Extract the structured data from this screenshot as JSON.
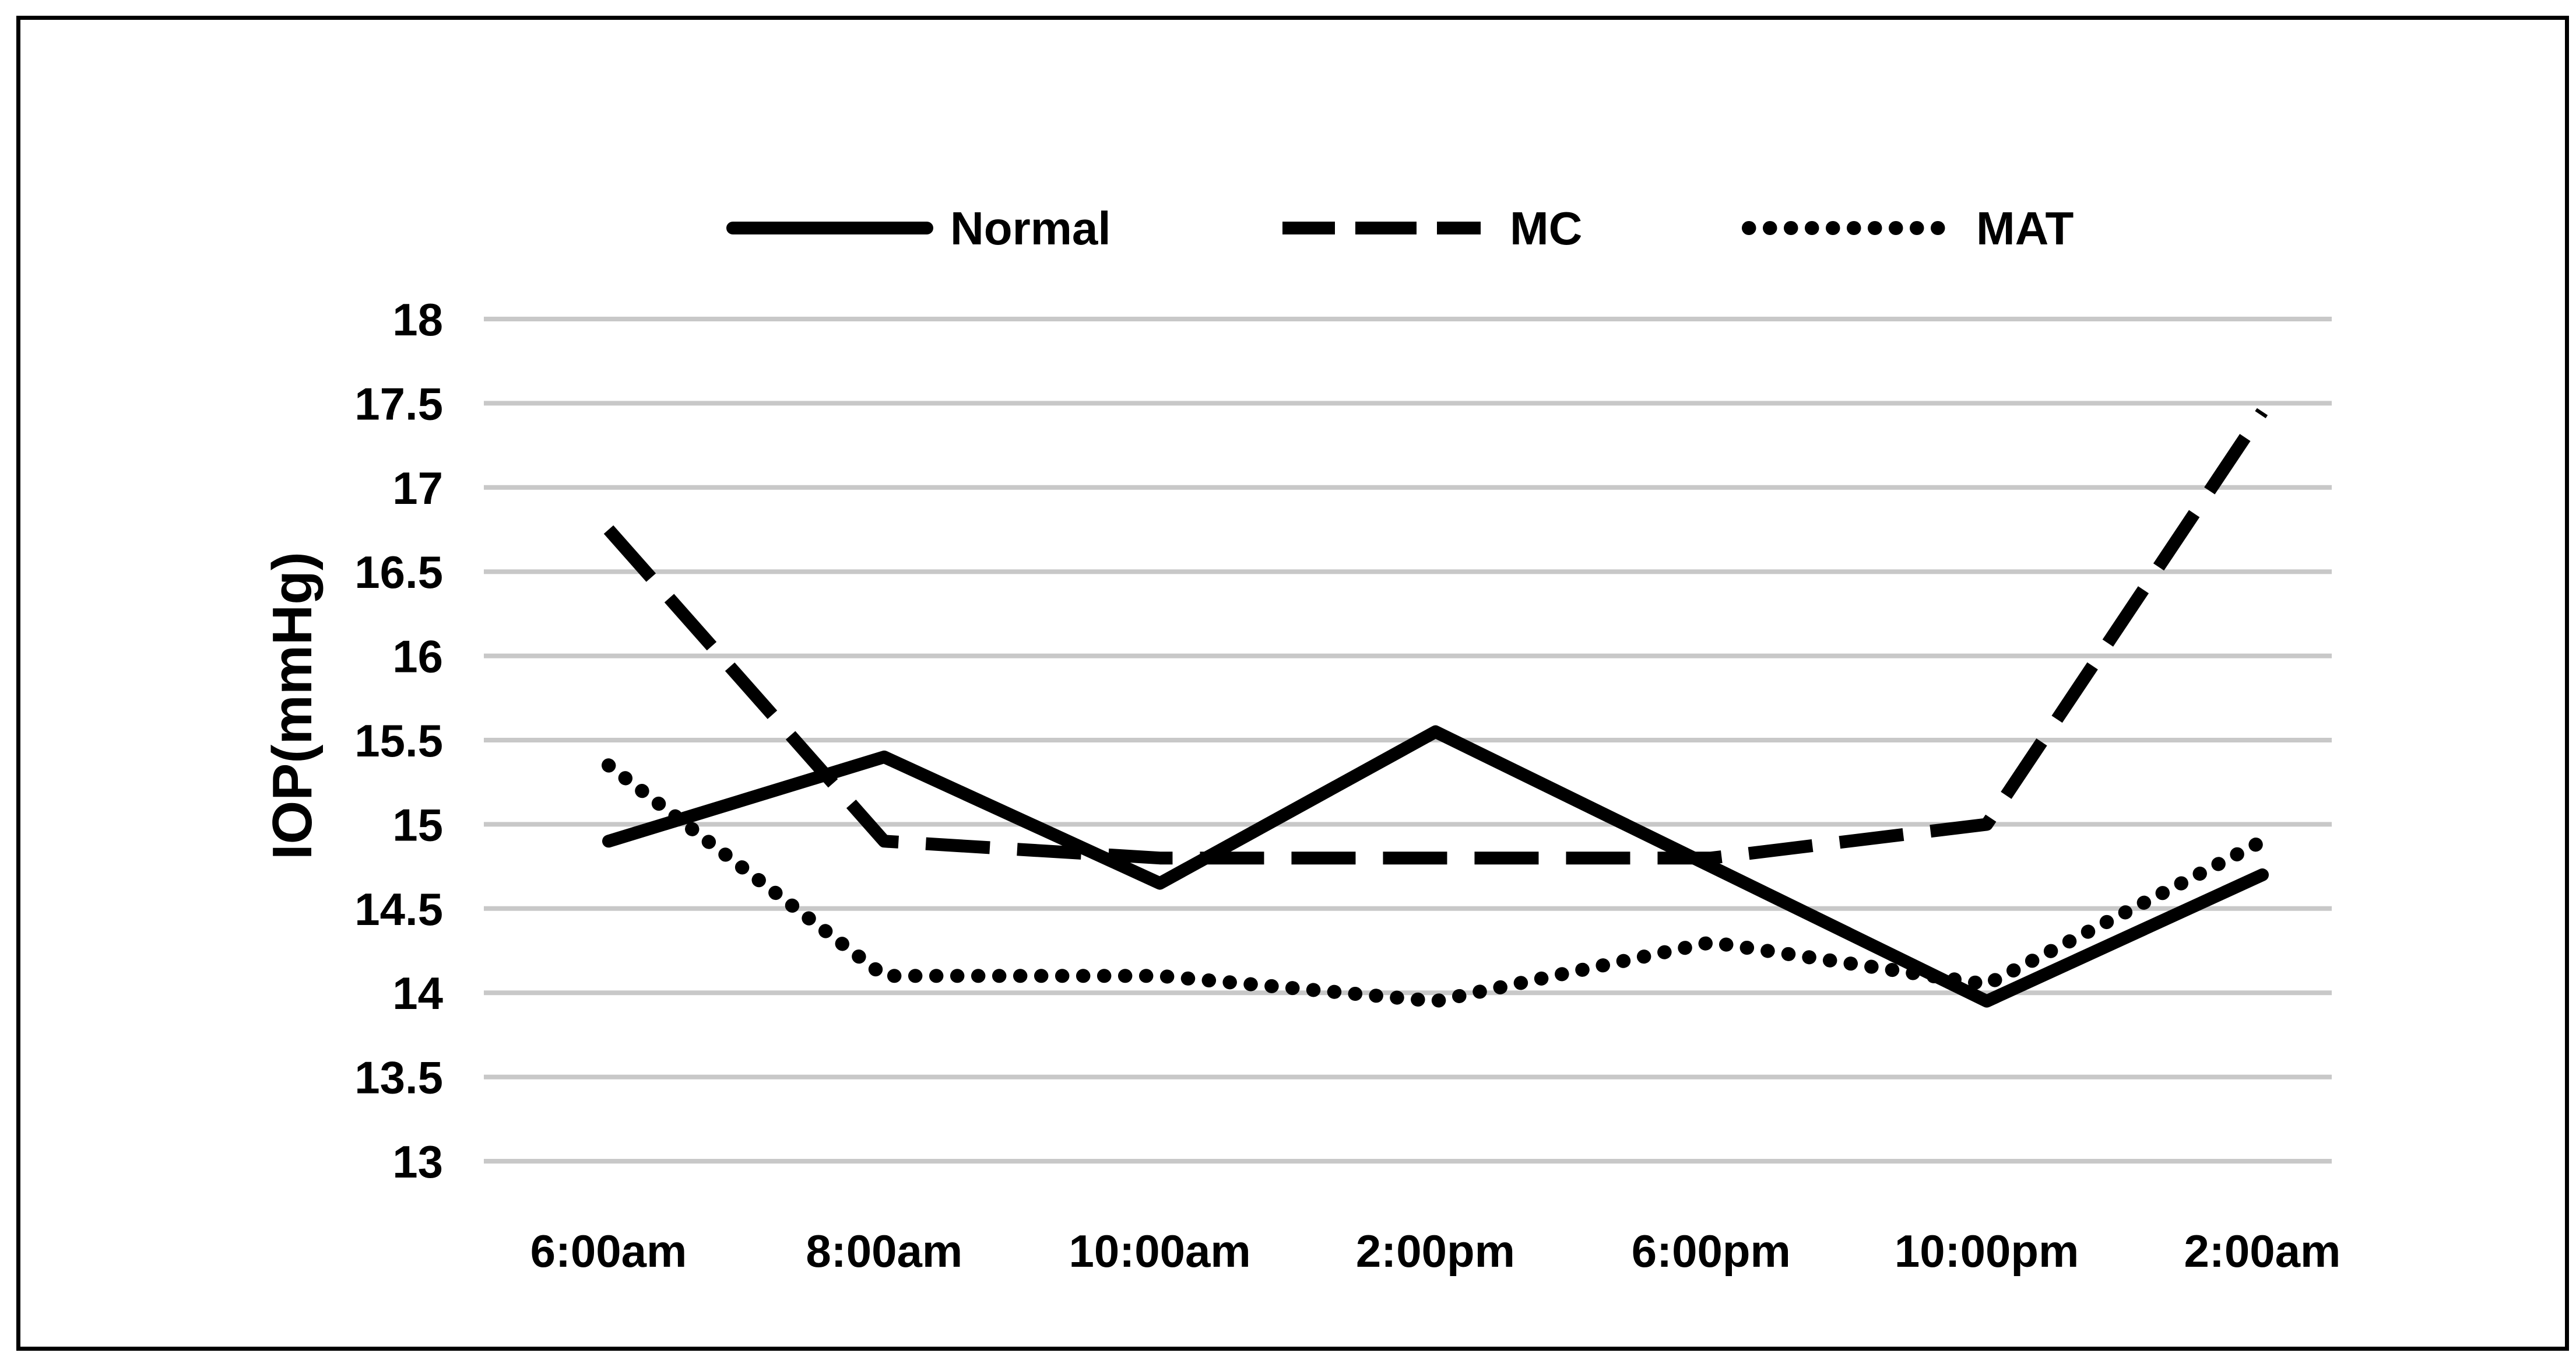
{
  "chart_data": {
    "type": "line",
    "title": "",
    "xlabel": "",
    "ylabel": "IOP(mmHg)",
    "categories": [
      "6:00am",
      "8:00am",
      "10:00am",
      "2:00pm",
      "6:00pm",
      "10:00pm",
      "2:00am"
    ],
    "series": [
      {
        "name": "Normal",
        "style": "solid",
        "values": [
          14.9,
          15.4,
          14.65,
          15.55,
          14.75,
          13.95,
          14.7
        ]
      },
      {
        "name": "MC",
        "style": "dashed",
        "values": [
          16.75,
          14.9,
          14.8,
          14.8,
          14.8,
          15.0,
          17.45
        ]
      },
      {
        "name": "MAT",
        "style": "dotted",
        "values": [
          15.35,
          14.1,
          14.1,
          13.95,
          14.3,
          14.05,
          14.9
        ]
      }
    ],
    "ylim": [
      13,
      18
    ],
    "ytick_step": 0.5,
    "ytick_labels": [
      "13",
      "13.5",
      "14",
      "14.5",
      "15",
      "15.5",
      "16",
      "16.5",
      "17",
      "17.5",
      "18"
    ],
    "grid": true,
    "legend_position": "top"
  },
  "colors": {
    "line": "#000000",
    "gridline": "#c8c8c8",
    "background": "#ffffff",
    "border": "#000000"
  }
}
